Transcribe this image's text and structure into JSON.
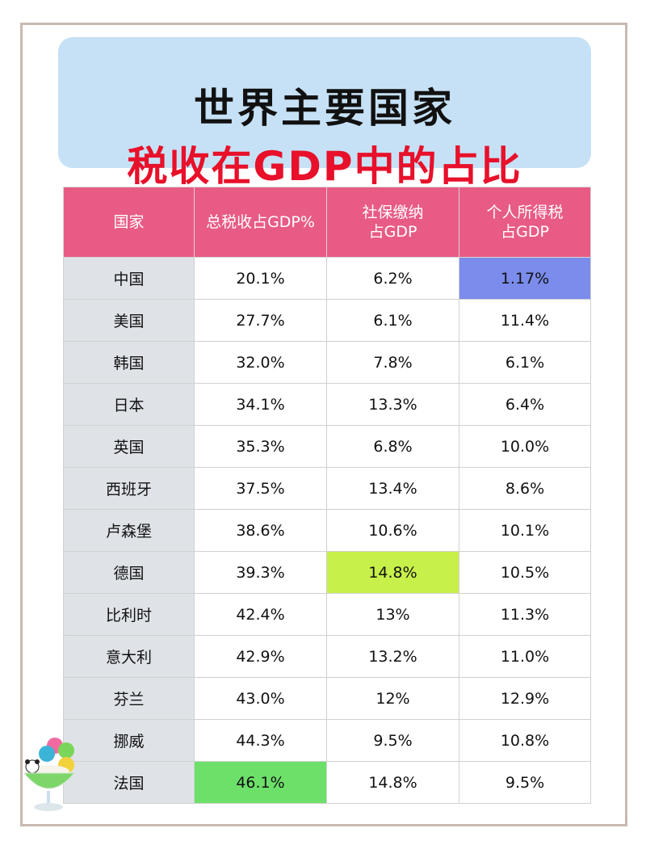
{
  "title": {
    "line1": "世界主要国家",
    "line2": "税收在GDP中的占比"
  },
  "colors": {
    "header": "#e85b85",
    "title_bg": "#c6e1f5",
    "title_accent": "#e8102a",
    "country_col": "#dfe3e8",
    "highlight_blue": "#7b8cec",
    "highlight_lime": "#c8f04a",
    "highlight_green": "#6de06a"
  },
  "chart_data": {
    "type": "table",
    "columns": [
      "国家",
      "总税收占GDP%",
      "社保缴纳\n占GDP",
      "个人所得税\n占GDP"
    ],
    "rows": [
      [
        "中国",
        "20.1%",
        "6.2%",
        "1.17%"
      ],
      [
        "美国",
        "27.7%",
        "6.1%",
        "11.4%"
      ],
      [
        "韩国",
        "32.0%",
        "7.8%",
        "6.1%"
      ],
      [
        "日本",
        "34.1%",
        "13.3%",
        "6.4%"
      ],
      [
        "英国",
        "35.3%",
        "6.8%",
        "10.0%"
      ],
      [
        "西班牙",
        "37.5%",
        "13.4%",
        "8.6%"
      ],
      [
        "卢森堡",
        "38.6%",
        "10.6%",
        "10.1%"
      ],
      [
        "德国",
        "39.3%",
        "14.8%",
        "10.5%"
      ],
      [
        "比利时",
        "42.4%",
        "13%",
        "11.3%"
      ],
      [
        "意大利",
        "42.9%",
        "13.2%",
        "11.0%"
      ],
      [
        "芬兰",
        "43.0%",
        "12%",
        "12.9%"
      ],
      [
        "挪威",
        "44.3%",
        "9.5%",
        "10.8%"
      ],
      [
        "法国",
        "46.1%",
        "14.8%",
        "9.5%"
      ]
    ],
    "highlights": [
      {
        "row": 0,
        "col": 3,
        "color": "#7b8cec"
      },
      {
        "row": 7,
        "col": 2,
        "color": "#c8f04a"
      },
      {
        "row": 12,
        "col": 1,
        "color": "#6de06a"
      }
    ]
  }
}
